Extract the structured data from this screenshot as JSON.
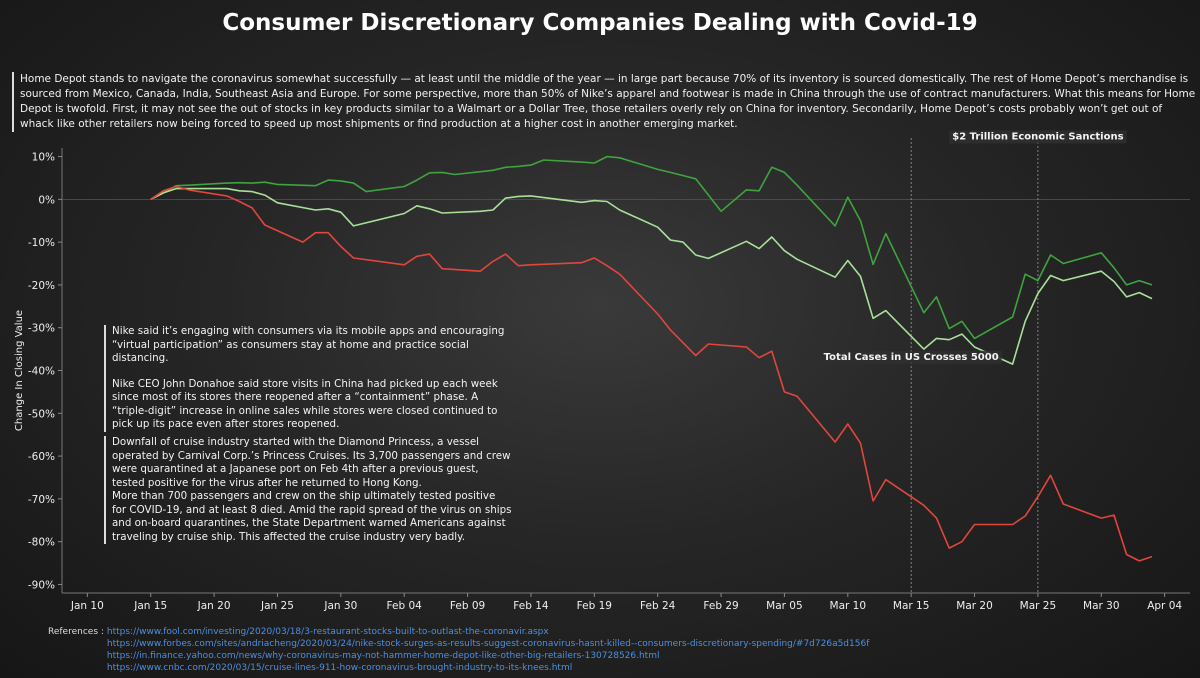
{
  "title": "Consumer Discretionary Companies Dealing with Covid-19",
  "intro": "Home Depot  stands to navigate the coronavirus somewhat successfully — at least until the middle of the year — in large part because 70% of its inventory is sourced domestically. The rest of Home Depot’s merchandise is sourced from Mexico, Canada, India, Southeast Asia and Europe. For some perspective, more than 50% of Nike’s apparel and footwear is made in China through the use of contract manufacturers. What this means for Home Depot is twofold. First, it may not see the out of stocks in key products similar to a Walmart or a Dollar Tree, those retailers overly rely on China for inventory. Secondarily, Home Depot’s costs probably won’t get out of whack like other retailers now being forced to speed up most shipments or find production at a higher cost in another emerging market.",
  "notes": {
    "nike": [
      "Nike said it’s engaging with consumers via its mobile apps and encouraging “virtual participation” as consumers stay at home and practice social distancing.",
      "Nike CEO John Donahoe said store visits in China had picked up each week since most of its stores there reopened after a “containment” phase. A “triple-digit” increase in online sales while stores were closed continued to pick up its pace even after stores reopened."
    ],
    "cruise": [
      "Downfall of cruise industry started with the Diamond Princess, a vessel operated by Carnival Corp.’s Princess Cruises. Its 3,700 passengers and crew were quarantined at a Japanese port on Feb 4th after a previous guest, tested positive for the virus after he returned to Hong Kong.",
      "More than 700 passengers and crew on the ship ultimately tested positive for COVID-19, and at least 8 died. Amid the rapid spread of the virus on ships and on-board quarantines, the State Department warned Americans against traveling by cruise ship. This affected the cruise industry very badly."
    ]
  },
  "references": {
    "label": "References :",
    "links": [
      "https://www.fool.com/investing/2020/03/18/3-restaurant-stocks-built-to-outlast-the-coronavir.aspx",
      "https://www.forbes.com/sites/andriacheng/2020/03/24/nike-stock-surges-as-results-suggest-coronavirus-hasnt-killed--consumers-discretionary-spending/#7d726a5d156f",
      "https://in.finance.yahoo.com/news/why-coronavirus-may-not-hammer-home-depot-like-other-big-retailers-130728526.html",
      "https://www.cnbc.com/2020/03/15/cruise-lines-911-how-coronavirus-brought-industry-to-its-knees.html"
    ]
  },
  "chart_data": {
    "type": "line",
    "ylabel": "Change In Closing Value",
    "xlabel": "",
    "x_range": [
      "2020-01-08",
      "2020-04-06"
    ],
    "ylim": [
      -0.92,
      0.12
    ],
    "x_ticks": [
      {
        "date": "2020-01-10",
        "label": "Jan 10"
      },
      {
        "date": "2020-01-15",
        "label": "Jan 15"
      },
      {
        "date": "2020-01-20",
        "label": "Jan 20"
      },
      {
        "date": "2020-01-25",
        "label": "Jan 25"
      },
      {
        "date": "2020-01-30",
        "label": "Jan 30"
      },
      {
        "date": "2020-02-04",
        "label": "Feb 04"
      },
      {
        "date": "2020-02-09",
        "label": "Feb 09"
      },
      {
        "date": "2020-02-14",
        "label": "Feb 14"
      },
      {
        "date": "2020-02-19",
        "label": "Feb 19"
      },
      {
        "date": "2020-02-24",
        "label": "Feb 24"
      },
      {
        "date": "2020-02-29",
        "label": "Feb 29"
      },
      {
        "date": "2020-03-05",
        "label": "Mar 05"
      },
      {
        "date": "2020-03-10",
        "label": "Mar 10"
      },
      {
        "date": "2020-03-15",
        "label": "Mar 15"
      },
      {
        "date": "2020-03-20",
        "label": "Mar 20"
      },
      {
        "date": "2020-03-25",
        "label": "Mar 25"
      },
      {
        "date": "2020-03-30",
        "label": "Mar 30"
      },
      {
        "date": "2020-04-04",
        "label": "Apr 04"
      }
    ],
    "y_ticks": [
      {
        "value": 0.1,
        "label": "10%"
      },
      {
        "value": 0.0,
        "label": "0%"
      },
      {
        "value": -0.1,
        "label": "-10%"
      },
      {
        "value": -0.2,
        "label": "-20%"
      },
      {
        "value": -0.3,
        "label": "-30%"
      },
      {
        "value": -0.4,
        "label": "-40%"
      },
      {
        "value": -0.5,
        "label": "-50%"
      },
      {
        "value": -0.6,
        "label": "-60%"
      },
      {
        "value": -0.7,
        "label": "-70%"
      },
      {
        "value": -0.8,
        "label": "-80%"
      },
      {
        "value": -0.9,
        "label": "-90%"
      }
    ],
    "grid": "horizontal zero line only",
    "event_lines": [
      {
        "date": "2020-03-15",
        "label": "Total Cases in US Crosses 5000",
        "label_value": -0.375
      },
      {
        "date": "2020-03-25",
        "label": "$2 Trillion Economic Sanctions",
        "label_value": 0.14
      }
    ],
    "series": [
      {
        "color": "#3fa33f",
        "points": [
          [
            "2020-01-15",
            0.0
          ],
          [
            "2020-01-16",
            0.015
          ],
          [
            "2020-01-17",
            0.032
          ],
          [
            "2020-01-18",
            0.033
          ],
          [
            "2020-01-21",
            0.038
          ],
          [
            "2020-01-22",
            0.039
          ],
          [
            "2020-01-23",
            0.038
          ],
          [
            "2020-01-24",
            0.04
          ],
          [
            "2020-01-25",
            0.035
          ],
          [
            "2020-01-28",
            0.032
          ],
          [
            "2020-01-29",
            0.045
          ],
          [
            "2020-01-30",
            0.043
          ],
          [
            "2020-01-31",
            0.038
          ],
          [
            "2020-02-01",
            0.018
          ],
          [
            "2020-02-04",
            0.03
          ],
          [
            "2020-02-05",
            0.045
          ],
          [
            "2020-02-06",
            0.062
          ],
          [
            "2020-02-07",
            0.063
          ],
          [
            "2020-02-08",
            0.058
          ],
          [
            "2020-02-11",
            0.068
          ],
          [
            "2020-02-12",
            0.075
          ],
          [
            "2020-02-13",
            0.077
          ],
          [
            "2020-02-14",
            0.08
          ],
          [
            "2020-02-15",
            0.092
          ],
          [
            "2020-02-18",
            0.087
          ],
          [
            "2020-02-19",
            0.085
          ],
          [
            "2020-02-20",
            0.1
          ],
          [
            "2020-02-21",
            0.097
          ],
          [
            "2020-02-24",
            0.07
          ],
          [
            "2020-02-25",
            0.063
          ],
          [
            "2020-02-27",
            0.048
          ],
          [
            "2020-02-29",
            -0.028
          ],
          [
            "2020-03-02",
            0.022
          ],
          [
            "2020-03-03",
            0.02
          ],
          [
            "2020-03-04",
            0.075
          ],
          [
            "2020-03-05",
            0.063
          ],
          [
            "2020-03-06",
            0.033
          ],
          [
            "2020-03-09",
            -0.062
          ],
          [
            "2020-03-10",
            0.005
          ],
          [
            "2020-03-11",
            -0.05
          ],
          [
            "2020-03-12",
            -0.152
          ],
          [
            "2020-03-13",
            -0.08
          ],
          [
            "2020-03-16",
            -0.265
          ],
          [
            "2020-03-17",
            -0.228
          ],
          [
            "2020-03-18",
            -0.302
          ],
          [
            "2020-03-19",
            -0.285
          ],
          [
            "2020-03-20",
            -0.325
          ],
          [
            "2020-03-23",
            -0.275
          ],
          [
            "2020-03-24",
            -0.175
          ],
          [
            "2020-03-25",
            -0.19
          ],
          [
            "2020-03-26",
            -0.13
          ],
          [
            "2020-03-27",
            -0.15
          ],
          [
            "2020-03-30",
            -0.125
          ],
          [
            "2020-03-31",
            -0.16
          ],
          [
            "2020-04-01",
            -0.2
          ],
          [
            "2020-04-02",
            -0.19
          ],
          [
            "2020-04-03",
            -0.2
          ]
        ]
      },
      {
        "color": "#a8e09a",
        "points": [
          [
            "2020-01-15",
            0.0
          ],
          [
            "2020-01-16",
            0.015
          ],
          [
            "2020-01-17",
            0.025
          ],
          [
            "2020-01-18",
            0.025
          ],
          [
            "2020-01-21",
            0.025
          ],
          [
            "2020-01-22",
            0.02
          ],
          [
            "2020-01-23",
            0.018
          ],
          [
            "2020-01-24",
            0.01
          ],
          [
            "2020-01-25",
            -0.008
          ],
          [
            "2020-01-28",
            -0.025
          ],
          [
            "2020-01-29",
            -0.022
          ],
          [
            "2020-01-30",
            -0.03
          ],
          [
            "2020-01-31",
            -0.062
          ],
          [
            "2020-02-04",
            -0.033
          ],
          [
            "2020-02-05",
            -0.015
          ],
          [
            "2020-02-06",
            -0.022
          ],
          [
            "2020-02-07",
            -0.032
          ],
          [
            "2020-02-10",
            -0.028
          ],
          [
            "2020-02-11",
            -0.025
          ],
          [
            "2020-02-12",
            0.003
          ],
          [
            "2020-02-13",
            0.007
          ],
          [
            "2020-02-14",
            0.008
          ],
          [
            "2020-02-18",
            -0.007
          ],
          [
            "2020-02-19",
            -0.003
          ],
          [
            "2020-02-20",
            -0.005
          ],
          [
            "2020-02-21",
            -0.025
          ],
          [
            "2020-02-24",
            -0.065
          ],
          [
            "2020-02-25",
            -0.095
          ],
          [
            "2020-02-26",
            -0.1
          ],
          [
            "2020-02-27",
            -0.13
          ],
          [
            "2020-02-28",
            -0.138
          ],
          [
            "2020-03-02",
            -0.098
          ],
          [
            "2020-03-03",
            -0.115
          ],
          [
            "2020-03-04",
            -0.088
          ],
          [
            "2020-03-05",
            -0.12
          ],
          [
            "2020-03-06",
            -0.14
          ],
          [
            "2020-03-09",
            -0.182
          ],
          [
            "2020-03-10",
            -0.143
          ],
          [
            "2020-03-11",
            -0.18
          ],
          [
            "2020-03-12",
            -0.278
          ],
          [
            "2020-03-13",
            -0.26
          ],
          [
            "2020-03-16",
            -0.35
          ],
          [
            "2020-03-17",
            -0.325
          ],
          [
            "2020-03-18",
            -0.328
          ],
          [
            "2020-03-19",
            -0.315
          ],
          [
            "2020-03-20",
            -0.345
          ],
          [
            "2020-03-23",
            -0.385
          ],
          [
            "2020-03-24",
            -0.285
          ],
          [
            "2020-03-25",
            -0.22
          ],
          [
            "2020-03-26",
            -0.178
          ],
          [
            "2020-03-27",
            -0.19
          ],
          [
            "2020-03-30",
            -0.168
          ],
          [
            "2020-03-31",
            -0.192
          ],
          [
            "2020-04-01",
            -0.228
          ],
          [
            "2020-04-02",
            -0.218
          ],
          [
            "2020-04-03",
            -0.232
          ]
        ]
      },
      {
        "color": "#e0463c",
        "points": [
          [
            "2020-01-15",
            0.0
          ],
          [
            "2020-01-16",
            0.02
          ],
          [
            "2020-01-17",
            0.03
          ],
          [
            "2020-01-18",
            0.022
          ],
          [
            "2020-01-21",
            0.008
          ],
          [
            "2020-01-22",
            -0.005
          ],
          [
            "2020-01-23",
            -0.02
          ],
          [
            "2020-01-24",
            -0.06
          ],
          [
            "2020-01-27",
            -0.1
          ],
          [
            "2020-01-28",
            -0.078
          ],
          [
            "2020-01-29",
            -0.078
          ],
          [
            "2020-01-30",
            -0.11
          ],
          [
            "2020-01-31",
            -0.137
          ],
          [
            "2020-02-04",
            -0.153
          ],
          [
            "2020-02-05",
            -0.133
          ],
          [
            "2020-02-06",
            -0.128
          ],
          [
            "2020-02-07",
            -0.162
          ],
          [
            "2020-02-10",
            -0.168
          ],
          [
            "2020-02-11",
            -0.145
          ],
          [
            "2020-02-12",
            -0.128
          ],
          [
            "2020-02-13",
            -0.155
          ],
          [
            "2020-02-14",
            -0.153
          ],
          [
            "2020-02-18",
            -0.148
          ],
          [
            "2020-02-19",
            -0.137
          ],
          [
            "2020-02-20",
            -0.155
          ],
          [
            "2020-02-21",
            -0.175
          ],
          [
            "2020-02-24",
            -0.268
          ],
          [
            "2020-02-25",
            -0.305
          ],
          [
            "2020-02-26",
            -0.335
          ],
          [
            "2020-02-27",
            -0.365
          ],
          [
            "2020-02-28",
            -0.338
          ],
          [
            "2020-03-02",
            -0.345
          ],
          [
            "2020-03-03",
            -0.37
          ],
          [
            "2020-03-04",
            -0.355
          ],
          [
            "2020-03-05",
            -0.45
          ],
          [
            "2020-03-06",
            -0.46
          ],
          [
            "2020-03-09",
            -0.567
          ],
          [
            "2020-03-10",
            -0.525
          ],
          [
            "2020-03-11",
            -0.57
          ],
          [
            "2020-03-12",
            -0.705
          ],
          [
            "2020-03-13",
            -0.655
          ],
          [
            "2020-03-16",
            -0.715
          ],
          [
            "2020-03-17",
            -0.745
          ],
          [
            "2020-03-18",
            -0.815
          ],
          [
            "2020-03-19",
            -0.8
          ],
          [
            "2020-03-20",
            -0.76
          ],
          [
            "2020-03-23",
            -0.76
          ],
          [
            "2020-03-24",
            -0.74
          ],
          [
            "2020-03-25",
            -0.695
          ],
          [
            "2020-03-26",
            -0.645
          ],
          [
            "2020-03-27",
            -0.712
          ],
          [
            "2020-03-30",
            -0.745
          ],
          [
            "2020-03-31",
            -0.738
          ],
          [
            "2020-04-01",
            -0.83
          ],
          [
            "2020-04-02",
            -0.845
          ],
          [
            "2020-04-03",
            -0.835
          ]
        ]
      }
    ]
  }
}
